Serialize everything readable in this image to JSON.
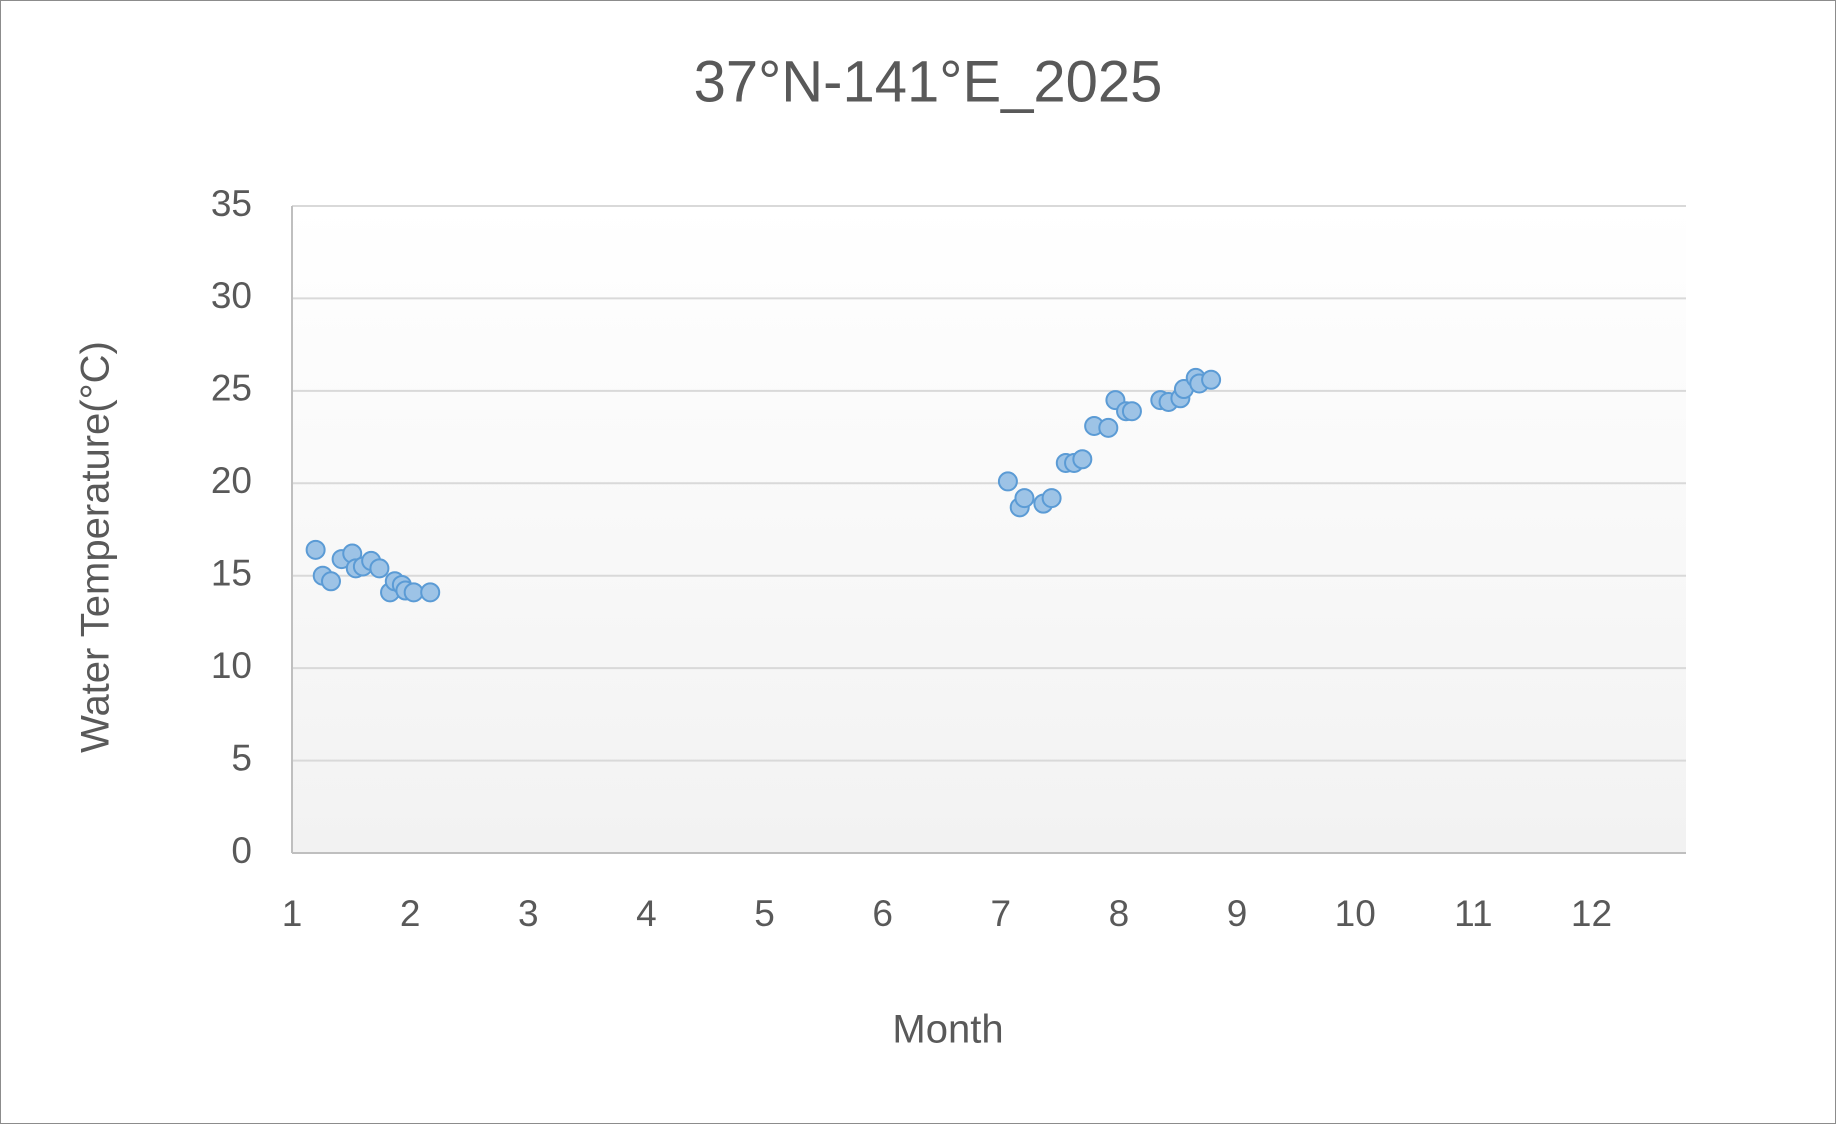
{
  "chart_data": {
    "type": "scatter",
    "title": "37°N-141°E_2025",
    "x_label": "Month",
    "y_label": "Water Temperature(°C)",
    "series": [
      {
        "color": "#9dc3e6",
        "x": [
          1.2,
          1.26,
          1.33,
          1.42,
          1.51,
          1.54,
          1.6,
          1.67,
          1.74,
          1.83,
          1.87,
          1.93,
          1.96,
          2.03,
          2.17,
          7.06,
          7.16,
          7.2,
          7.36,
          7.43,
          7.55,
          7.62,
          7.69,
          7.79,
          7.91,
          7.97,
          8.06,
          8.11,
          8.35,
          8.42,
          8.52,
          8.55,
          8.65,
          8.68,
          8.78
        ],
        "values": [
          16.4,
          15.0,
          14.7,
          15.9,
          16.2,
          15.4,
          15.5,
          15.8,
          15.4,
          14.1,
          14.7,
          14.5,
          14.2,
          14.1,
          14.1,
          20.1,
          18.7,
          19.2,
          18.9,
          19.2,
          21.1,
          21.1,
          21.3,
          23.1,
          23.0,
          24.5,
          23.9,
          23.9,
          24.5,
          24.4,
          24.6,
          25.1,
          25.7,
          25.4,
          25.6
        ]
      }
    ],
    "xlim": [
      1,
      12.8
    ],
    "xticks": [
      1,
      2,
      3,
      4,
      5,
      6,
      7,
      8,
      9,
      10,
      11,
      12
    ],
    "ylim": [
      0,
      35
    ],
    "yticks": [
      0,
      5,
      10,
      15,
      20,
      25,
      30,
      35
    ],
    "grid": true
  }
}
